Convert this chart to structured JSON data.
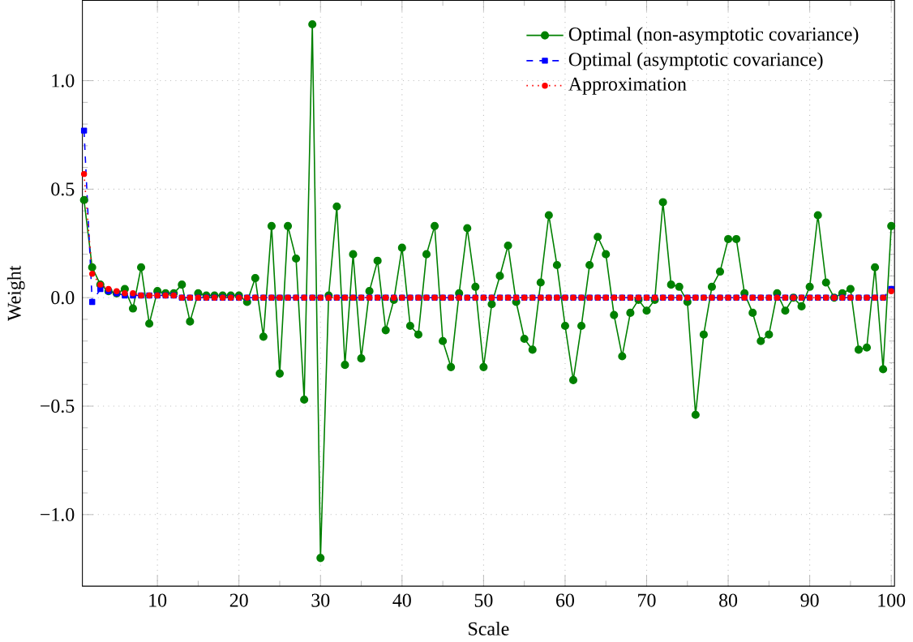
{
  "chart_data": {
    "type": "line",
    "xlabel": "Scale",
    "ylabel": "Weight",
    "x": [
      1,
      2,
      3,
      4,
      5,
      6,
      7,
      8,
      9,
      10,
      11,
      12,
      13,
      14,
      15,
      16,
      17,
      18,
      19,
      20,
      21,
      22,
      23,
      24,
      25,
      26,
      27,
      28,
      29,
      30,
      31,
      32,
      33,
      34,
      35,
      36,
      37,
      38,
      39,
      40,
      41,
      42,
      43,
      44,
      45,
      46,
      47,
      48,
      49,
      50,
      51,
      52,
      53,
      54,
      55,
      56,
      57,
      58,
      59,
      60,
      61,
      62,
      63,
      64,
      65,
      66,
      67,
      68,
      69,
      70,
      71,
      72,
      73,
      74,
      75,
      76,
      77,
      78,
      79,
      80,
      81,
      82,
      83,
      84,
      85,
      86,
      87,
      88,
      89,
      90,
      91,
      92,
      93,
      94,
      95,
      96,
      97,
      98,
      99,
      100
    ],
    "series": [
      {
        "name": "Optimal (non-asymptotic covariance)",
        "color": "#008000",
        "marker": "circle",
        "line_style": "solid",
        "values": [
          0.45,
          0.14,
          0.06,
          0.03,
          0.02,
          0.04,
          -0.05,
          0.14,
          -0.12,
          0.03,
          0.02,
          0.02,
          0.06,
          -0.11,
          0.02,
          0.01,
          0.01,
          0.01,
          0.01,
          0.01,
          -0.02,
          0.09,
          -0.18,
          0.33,
          -0.35,
          0.33,
          0.18,
          -0.47,
          1.26,
          -1.2,
          0.01,
          0.42,
          -0.31,
          0.2,
          -0.28,
          0.03,
          0.17,
          -0.15,
          -0.01,
          0.23,
          -0.13,
          -0.17,
          0.2,
          0.33,
          -0.2,
          -0.32,
          0.02,
          0.32,
          0.05,
          -0.32,
          -0.03,
          0.1,
          0.24,
          -0.02,
          -0.19,
          -0.24,
          0.07,
          0.38,
          0.15,
          -0.13,
          -0.38,
          -0.13,
          0.15,
          0.28,
          0.2,
          -0.08,
          -0.27,
          -0.07,
          -0.01,
          -0.06,
          -0.01,
          0.44,
          0.06,
          0.05,
          -0.02,
          -0.54,
          -0.17,
          0.05,
          0.12,
          0.27,
          0.27,
          0.02,
          -0.07,
          -0.2,
          -0.17,
          0.02,
          -0.06,
          0.0,
          -0.04,
          0.05,
          0.38,
          0.07,
          0.0,
          0.02,
          0.04,
          -0.24,
          -0.23,
          0.14,
          -0.33,
          0.33
        ]
      },
      {
        "name": "Optimal (asymptotic covariance)",
        "color": "#0000ff",
        "marker": "square",
        "line_style": "dashed",
        "values": [
          0.77,
          -0.02,
          0.04,
          0.03,
          0.02,
          0.01,
          0.01,
          0.01,
          0.01,
          0.01,
          0.01,
          0.01,
          0,
          0,
          0,
          0,
          0,
          0,
          0,
          0,
          0,
          0,
          0,
          0,
          0,
          0,
          0,
          0,
          0,
          0,
          0,
          0,
          0,
          0,
          0,
          0,
          0,
          0,
          0,
          0,
          0,
          0,
          0,
          0,
          0,
          0,
          0,
          0,
          0,
          0,
          0,
          0,
          0,
          0,
          0,
          0,
          0,
          0,
          0,
          0,
          0,
          0,
          0,
          0,
          0,
          0,
          0,
          0,
          0,
          0,
          0,
          0,
          0,
          0,
          0,
          0,
          0,
          0,
          0,
          0,
          0,
          0,
          0,
          0,
          0,
          0,
          0,
          0,
          0,
          0,
          0,
          0,
          0,
          0,
          0,
          0,
          0,
          0,
          0,
          0.04
        ]
      },
      {
        "name": "Approximation",
        "color": "#ff0000",
        "marker": "circle",
        "line_style": "dotted",
        "values": [
          0.57,
          0.11,
          0.06,
          0.04,
          0.03,
          0.02,
          0.02,
          0.01,
          0.01,
          0.01,
          0.01,
          0.01,
          0,
          0,
          0,
          0,
          0,
          0,
          0,
          0,
          0,
          0,
          0,
          0,
          0,
          0,
          0,
          0,
          0,
          0,
          0,
          0,
          0,
          0,
          0,
          0,
          0,
          0,
          0,
          0,
          0,
          0,
          0,
          0,
          0,
          0,
          0,
          0,
          0,
          0,
          0,
          0,
          0,
          0,
          0,
          0,
          0,
          0,
          0,
          0,
          0,
          0,
          0,
          0,
          0,
          0,
          0,
          0,
          0,
          0,
          0,
          0,
          0,
          0,
          0,
          0,
          0,
          0,
          0,
          0,
          0,
          0,
          0,
          0,
          0,
          0,
          0,
          0,
          0,
          0,
          0,
          0,
          0,
          0,
          0,
          0,
          0,
          0,
          0,
          0.03
        ]
      }
    ],
    "xlim": [
      0.8,
      100.4
    ],
    "ylim": [
      -1.33,
      1.37
    ],
    "xticks": [
      10,
      20,
      30,
      40,
      50,
      60,
      70,
      80,
      90,
      100
    ],
    "yticks": [
      {
        "value": -1.0,
        "label": "−1.0"
      },
      {
        "value": -0.5,
        "label": "−0.5"
      },
      {
        "value": 0.0,
        "label": "0.0"
      },
      {
        "value": 0.5,
        "label": "0.5"
      },
      {
        "value": 1.0,
        "label": "1.0"
      }
    ],
    "grid": true,
    "legend": "top right"
  }
}
